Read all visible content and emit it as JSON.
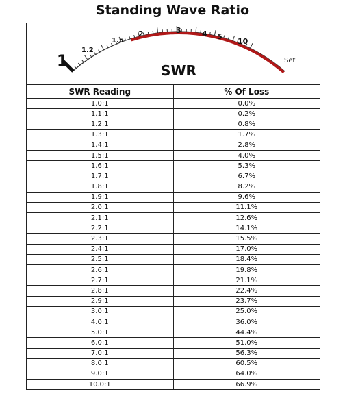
{
  "header": {
    "title": "Standing Wave Ratio"
  },
  "meter": {
    "scale_labels": [
      "1",
      "1.2",
      "1.5",
      "2",
      "3",
      "4",
      "5",
      "10",
      "Set"
    ],
    "label": "SWR"
  },
  "table": {
    "columns": [
      "SWR Reading",
      "% Of Loss"
    ],
    "rows": [
      [
        "1.0:1",
        "0.0%"
      ],
      [
        "1.1:1",
        "0.2%"
      ],
      [
        "1.2:1",
        "0.8%"
      ],
      [
        "1.3:1",
        "1.7%"
      ],
      [
        "1.4:1",
        "2.8%"
      ],
      [
        "1.5:1",
        "4.0%"
      ],
      [
        "1.6:1",
        "5.3%"
      ],
      [
        "1.7:1",
        "6.7%"
      ],
      [
        "1.8:1",
        "8.2%"
      ],
      [
        "1.9:1",
        "9.6%"
      ],
      [
        "2.0:1",
        "11.1%"
      ],
      [
        "2.1:1",
        "12.6%"
      ],
      [
        "2.2:1",
        "14.1%"
      ],
      [
        "2.3:1",
        "15.5%"
      ],
      [
        "2.4:1",
        "17.0%"
      ],
      [
        "2.5:1",
        "18.4%"
      ],
      [
        "2.6:1",
        "19.8%"
      ],
      [
        "2.7:1",
        "21.1%"
      ],
      [
        "2.8:1",
        "22.4%"
      ],
      [
        "2.9:1",
        "23.7%"
      ],
      [
        "3.0:1",
        "25.0%"
      ],
      [
        "4.0:1",
        "36.0%"
      ],
      [
        "5.0:1",
        "44.4%"
      ],
      [
        "6.0:1",
        "51.0%"
      ],
      [
        "7.0:1",
        "56.3%"
      ],
      [
        "8.0:1",
        "60.5%"
      ],
      [
        "9.0:1",
        "64.0%"
      ],
      [
        "10.0:1",
        "66.9%"
      ]
    ]
  }
}
